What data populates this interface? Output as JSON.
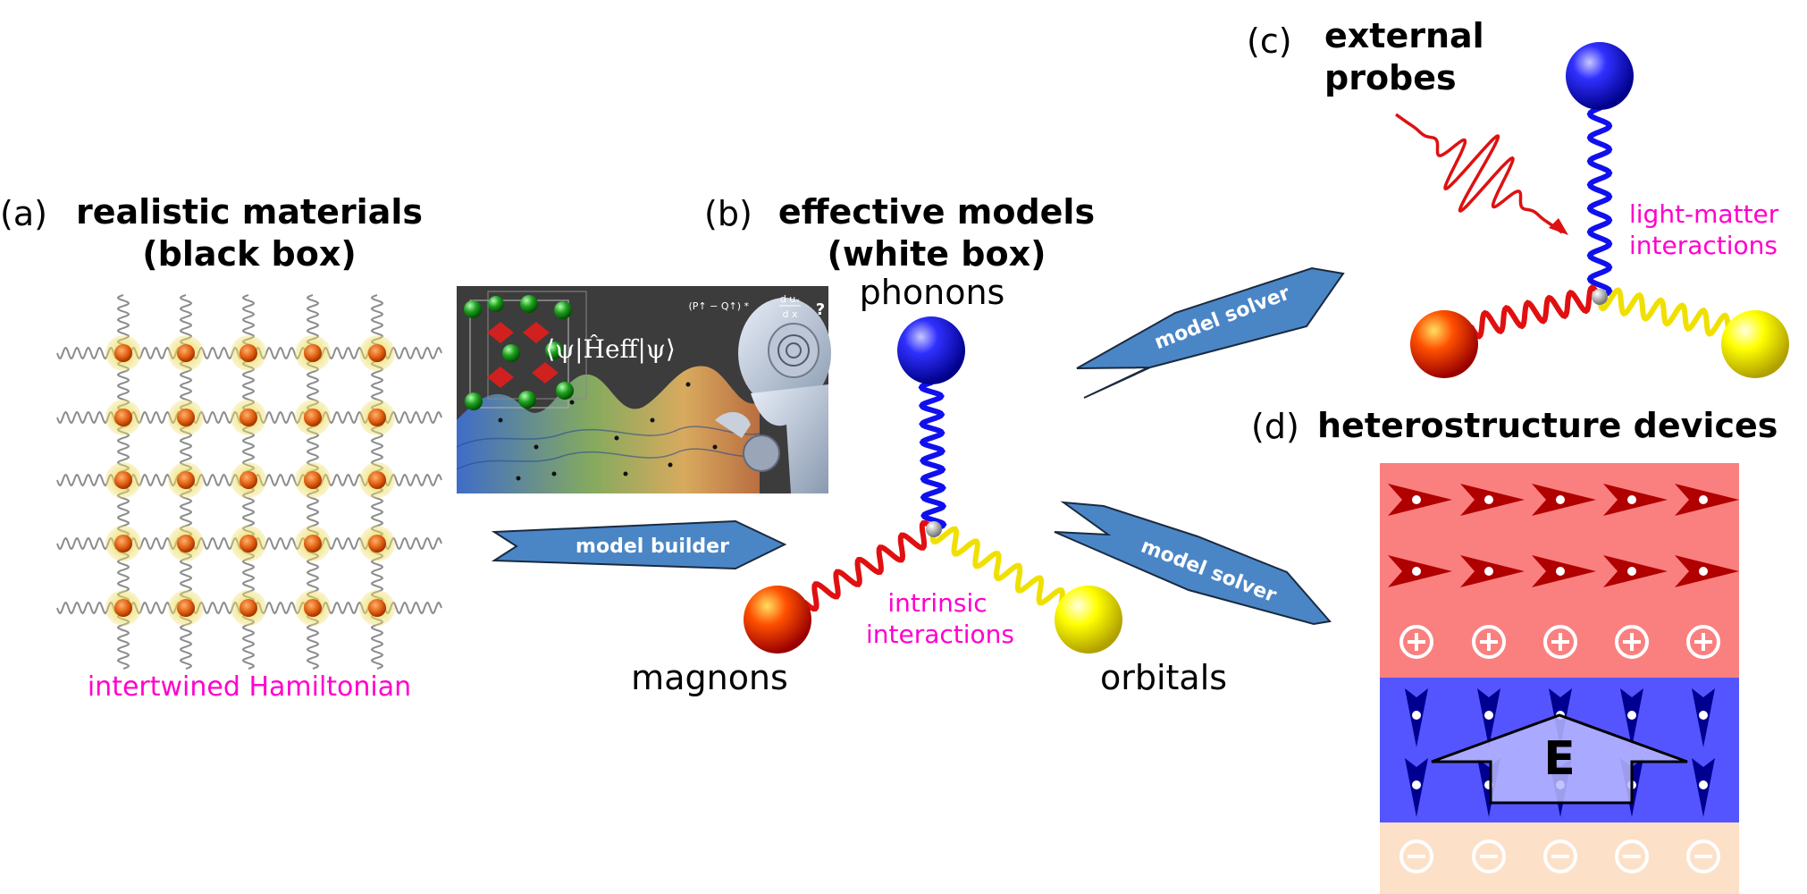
{
  "panel_a": {
    "label": "(a)",
    "title_line1": "realistic materials",
    "title_line2": "(black box)",
    "caption": "intertwined Hamiltonian"
  },
  "panel_b": {
    "label": "(b)",
    "title_line1": "effective models",
    "title_line2": "(white box)",
    "phonons": "phonons",
    "magnons": "magnons",
    "orbitals": "orbitals",
    "interactions_line1": "intrinsic",
    "interactions_line2": "interactions"
  },
  "panel_c": {
    "label": "(c)",
    "title_line1": "external",
    "title_line2": "probes",
    "interactions_line1": "light-matter",
    "interactions_line2": "interactions"
  },
  "panel_d": {
    "label": "(d)",
    "title": "heterostructure devices",
    "field_label": "E",
    "plus_symbol": "+",
    "minus_symbol": "−"
  },
  "arrows": {
    "builder": "model builder",
    "solver_upper": "model solver",
    "solver_lower": "model solver"
  },
  "ai_image": {
    "expectation_value": "⟨ψ|Ĥeff|ψ⟩",
    "formula_left": "(P↑ − Q↑) *",
    "formula_num": "d uₓ",
    "formula_den": "d x",
    "question_mark": "?"
  },
  "colors": {
    "magenta": "#ff00cc",
    "arrow_fill": "#4a86c6",
    "phonon": "#1a1aff",
    "magnon": "#ff2200",
    "orbital": "#ffff00",
    "top_layer": "#fa8080",
    "mid_layer": "#5555ff",
    "bottom_layer": "#fde0c8"
  }
}
